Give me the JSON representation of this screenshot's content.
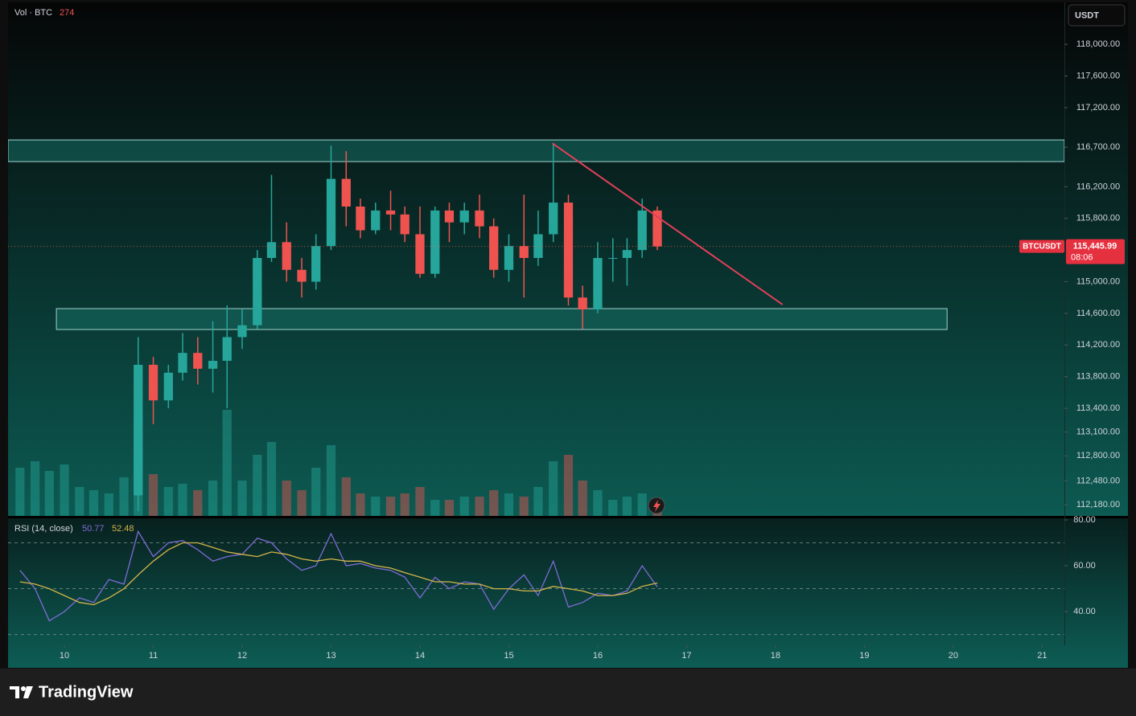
{
  "ui": {
    "currency": "USDT",
    "brand": "TradingView"
  },
  "chart_data": [
    {
      "type": "candlestick",
      "symbol": "BTCUSDT",
      "countdown": "08:06",
      "last_label": "115,445.99",
      "up_color": "#26a69a",
      "down_color": "#ef5350",
      "xlim": [
        9.366,
        21.25
      ],
      "xticks": [
        10,
        11,
        12,
        13,
        14,
        15,
        16,
        17,
        18,
        19,
        20,
        21
      ],
      "ylim": [
        112040,
        118530
      ],
      "yticks": [
        {
          "value": 118000,
          "label": "118,000.00"
        },
        {
          "value": 117600,
          "label": "117,600.00"
        },
        {
          "value": 117200,
          "label": "117,200.00"
        },
        {
          "value": 116700,
          "label": "116,700.00"
        },
        {
          "value": 116200,
          "label": "116,200.00"
        },
        {
          "value": 115800,
          "label": "115,800.00"
        },
        {
          "value": 115000,
          "label": "115,000.00"
        },
        {
          "value": 114600,
          "label": "114,600.00"
        },
        {
          "value": 114200,
          "label": "114,200.00"
        },
        {
          "value": 113800,
          "label": "113,800.00"
        },
        {
          "value": 113400,
          "label": "113,400.00"
        },
        {
          "value": 113100,
          "label": "113,100.00"
        },
        {
          "value": 112800,
          "label": "112,800.00"
        },
        {
          "value": 112480,
          "label": "112,480.00"
        },
        {
          "value": 112180,
          "label": "112,180.00"
        }
      ],
      "x": [
        9.5,
        9.67,
        9.83,
        10.0,
        10.17,
        10.33,
        10.5,
        10.67,
        10.83,
        11.0,
        11.17,
        11.33,
        11.5,
        11.67,
        11.83,
        12.0,
        12.17,
        12.33,
        12.5,
        12.67,
        12.83,
        13.0,
        13.17,
        13.33,
        13.5,
        13.67,
        13.83,
        14.0,
        14.17,
        14.33,
        14.5,
        14.67,
        14.83,
        15.0,
        15.17,
        15.33,
        15.5,
        15.67,
        15.83,
        16.0,
        16.17,
        16.33,
        16.5,
        16.67
      ],
      "open": [
        null,
        null,
        null,
        null,
        null,
        null,
        null,
        null,
        112300,
        113950,
        113500,
        113850,
        114100,
        113900,
        114000,
        114300,
        114450,
        115300,
        115500,
        115150,
        115000,
        115450,
        116300,
        115950,
        115650,
        115900,
        115850,
        115600,
        115100,
        115900,
        115750,
        115900,
        115700,
        115150,
        115450,
        115300,
        115600,
        116000,
        114800,
        114650,
        115300,
        115300,
        115400,
        115900
      ],
      "high": [
        null,
        null,
        null,
        null,
        null,
        null,
        null,
        null,
        114300,
        114050,
        113950,
        114350,
        114300,
        114500,
        114700,
        114650,
        115400,
        116350,
        115750,
        115300,
        115600,
        116720,
        116650,
        116050,
        116000,
        116150,
        115950,
        115950,
        115950,
        116000,
        116000,
        116100,
        115800,
        115600,
        116100,
        115900,
        116750,
        116100,
        114950,
        115500,
        115550,
        115550,
        116050,
        115950
      ],
      "low": [
        null,
        null,
        null,
        null,
        null,
        null,
        null,
        null,
        112100,
        113200,
        113400,
        113750,
        113700,
        113600,
        113400,
        114150,
        114400,
        115250,
        115000,
        114800,
        114900,
        115400,
        115700,
        115550,
        115600,
        115650,
        115500,
        115050,
        115050,
        115500,
        115600,
        115550,
        115050,
        115000,
        114800,
        115200,
        115500,
        114700,
        114400,
        114600,
        115000,
        114950,
        115300,
        115400
      ],
      "close": [
        null,
        null,
        null,
        null,
        null,
        null,
        null,
        null,
        113950,
        113500,
        113850,
        114100,
        113900,
        114000,
        114300,
        114450,
        115300,
        115500,
        115150,
        115000,
        115450,
        116300,
        115950,
        115650,
        115900,
        115850,
        115600,
        115100,
        115900,
        115750,
        115900,
        115700,
        115150,
        115450,
        115300,
        115600,
        116000,
        114800,
        114650,
        115300,
        115300,
        115400,
        115900,
        115445.99
      ],
      "volume": {
        "name": "Vol · BTC",
        "vlim": [
          0,
          5000
        ],
        "values": [
          1500,
          1700,
          1400,
          1600,
          900,
          800,
          700,
          1200,
          3100,
          1300,
          900,
          1000,
          800,
          1100,
          3300,
          1100,
          1900,
          2300,
          1100,
          800,
          1500,
          2200,
          1200,
          700,
          600,
          600,
          700,
          900,
          500,
          500,
          600,
          600,
          800,
          700,
          600,
          900,
          1700,
          1900,
          1100,
          800,
          500,
          600,
          700,
          274
        ]
      },
      "zones": [
        {
          "ylow": 116518,
          "yhigh": 116792,
          "xlim": [
            9.366,
            21.25
          ]
        },
        {
          "ylow": 114396,
          "yhigh": 114660,
          "xlim": [
            9.91,
            19.93
          ]
        }
      ],
      "trendline": {
        "color": "#e0405a",
        "x": [
          15.49,
          18.08
        ],
        "y": [
          116750,
          114710
        ]
      }
    },
    {
      "type": "line",
      "title": "RSI (14, close)",
      "ylim": [
        25.3,
        80.7
      ],
      "yticks": [
        {
          "value": 80,
          "label": "80.00"
        },
        {
          "value": 60,
          "label": "60.00"
        },
        {
          "value": 40,
          "label": "40.00"
        }
      ],
      "bands": [
        70,
        50,
        30
      ],
      "series": [
        {
          "color": "#7e6bd6",
          "values": [
            58,
            50,
            36,
            40,
            46,
            44,
            54,
            52,
            75,
            64,
            70,
            71,
            67,
            62,
            64,
            65,
            72,
            70,
            63,
            58,
            60,
            74,
            60,
            61,
            59,
            58,
            55,
            46,
            55,
            50,
            53,
            52,
            41,
            50,
            56,
            47,
            62,
            42,
            44,
            48,
            47,
            49,
            60,
            50.77
          ]
        },
        {
          "color": "#d4b44a",
          "values": [
            53,
            52,
            50,
            47,
            44,
            43,
            46,
            50,
            56,
            62,
            67,
            70,
            70,
            68,
            66,
            65,
            64,
            66,
            65,
            63,
            62,
            63,
            62,
            62,
            60,
            59,
            57,
            55,
            53,
            53,
            52,
            52,
            50,
            50,
            49,
            49,
            51,
            50,
            49,
            47,
            47,
            48,
            51,
            52.48
          ]
        }
      ]
    }
  ]
}
